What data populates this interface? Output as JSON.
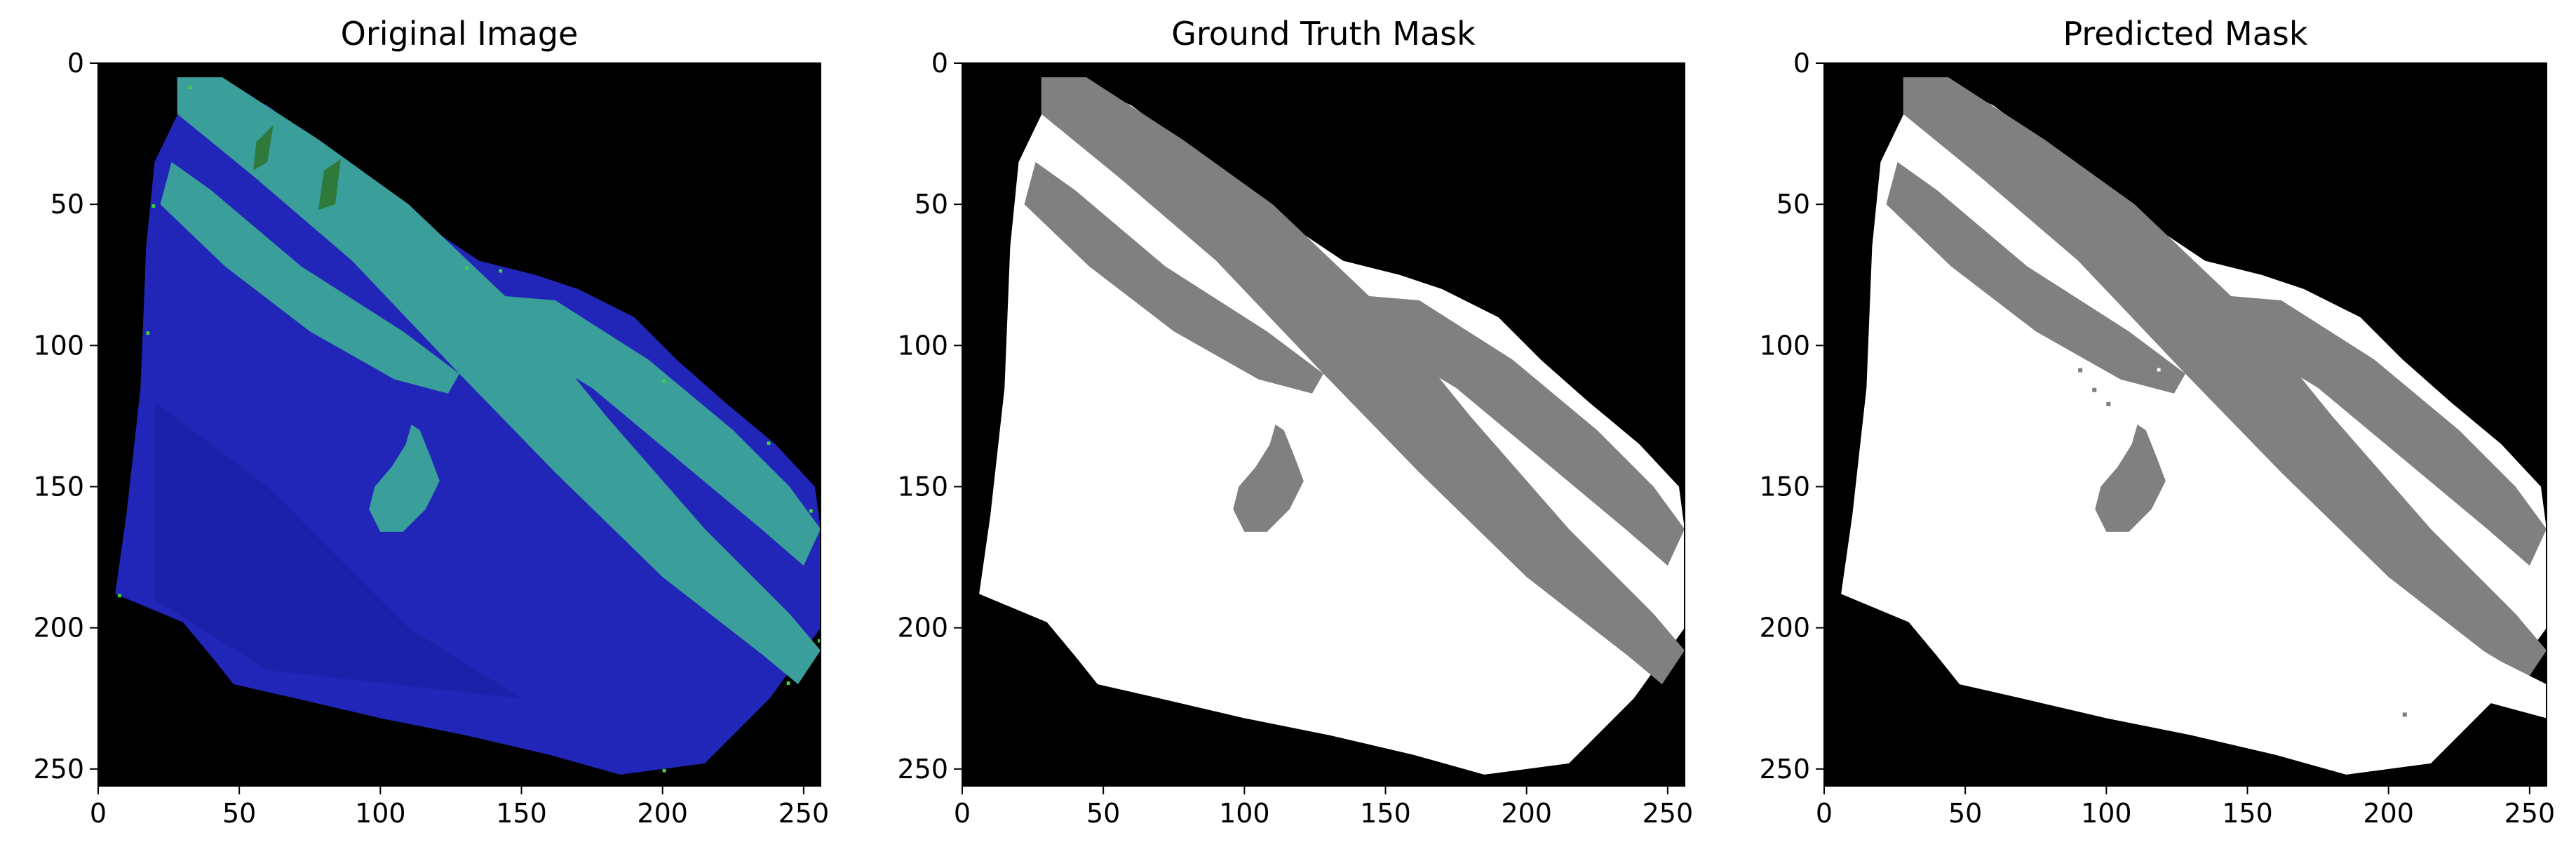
{
  "figure": {
    "panels": [
      {
        "title": "Original Image"
      },
      {
        "title": "Ground Truth Mask"
      },
      {
        "title": "Predicted Mask"
      }
    ],
    "axes": {
      "x_ticks": [
        "0",
        "50",
        "100",
        "150",
        "200",
        "250"
      ],
      "y_ticks": [
        "0",
        "50",
        "100",
        "150",
        "200",
        "250"
      ],
      "xlim": [
        0,
        256
      ],
      "ylim": [
        256,
        0
      ]
    },
    "colors": {
      "background": "#000000",
      "tissue": "#2226b8",
      "tissue_deep": "#1a1c9e",
      "stripe": "#3a9e9b",
      "stripe_accent": "#2f7a3a",
      "speck": "#3dd43d",
      "mask_foreground": "#ffffff",
      "mask_class": "#808080"
    }
  }
}
